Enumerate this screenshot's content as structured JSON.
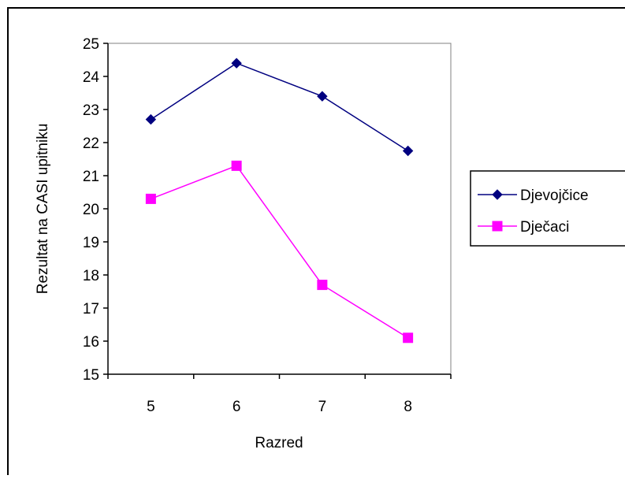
{
  "chart_data": {
    "type": "line",
    "title": "",
    "xlabel": "Razred",
    "ylabel": "Rezultat na CASI upitniku",
    "categories": [
      "5",
      "6",
      "7",
      "8"
    ],
    "ylim": [
      15,
      25
    ],
    "yticks": [
      "15",
      "16",
      "17",
      "18",
      "19",
      "20",
      "21",
      "22",
      "23",
      "24",
      "25"
    ],
    "grid": false,
    "legend": "right",
    "series": [
      {
        "name": "Djevojčice",
        "color": "#000080",
        "marker": "diamond",
        "values": [
          22.7,
          24.4,
          23.4,
          21.75
        ]
      },
      {
        "name": "Dječaci",
        "color": "#ff00ff",
        "marker": "square",
        "values": [
          20.3,
          21.3,
          17.7,
          16.1
        ]
      }
    ]
  }
}
